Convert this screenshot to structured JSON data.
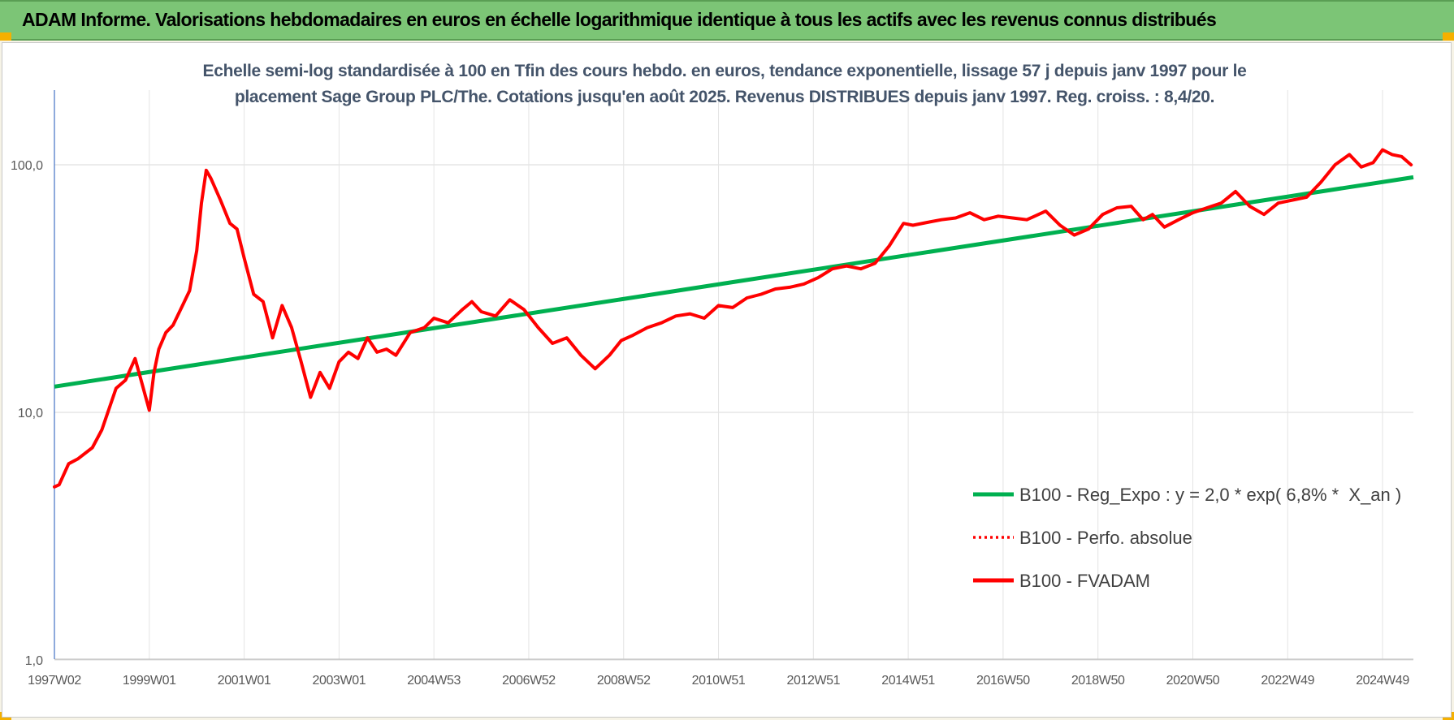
{
  "banner": {
    "title": "ADAM Informe. Valorisations hebdomadaires en euros en échelle logarithmique identique à tous les actifs avec les revenus connus distribués"
  },
  "colors": {
    "banner_bg": "#7cc576",
    "regression": "#00b050",
    "fvadam": "#ff0000",
    "perfo": "#ff0000"
  },
  "chart_data": {
    "type": "line",
    "title_lines": [
      "Echelle semi-log standardisée à 100 en Tfin des cours hebdo. en euros, tendance exponentielle, lissage 57 j depuis janv 1997 pour le",
      "placement Sage Group PLC/The. Cotations jusqu'en août 2025.  Revenus DISTRIBUES depuis janv 1997.  Reg. croiss. : 8,4/20."
    ],
    "y_scale": "log",
    "ylim": [
      1,
      200
    ],
    "y_ticks": [
      {
        "value": 1,
        "label": "1,0"
      },
      {
        "value": 10,
        "label": "10,0"
      },
      {
        "value": 100,
        "label": "100,0"
      }
    ],
    "xlim": [
      1997.0,
      2025.65
    ],
    "x_ticks": [
      {
        "value": 1997.0,
        "label": "1997W02"
      },
      {
        "value": 1999.0,
        "label": "1999W01"
      },
      {
        "value": 2001.0,
        "label": "2001W01"
      },
      {
        "value": 2003.0,
        "label": "2003W01"
      },
      {
        "value": 2005.0,
        "label": "2004W53"
      },
      {
        "value": 2007.0,
        "label": "2006W52"
      },
      {
        "value": 2009.0,
        "label": "2008W52"
      },
      {
        "value": 2011.0,
        "label": "2010W51"
      },
      {
        "value": 2013.0,
        "label": "2012W51"
      },
      {
        "value": 2015.0,
        "label": "2014W51"
      },
      {
        "value": 2017.0,
        "label": "2016W50"
      },
      {
        "value": 2019.0,
        "label": "2018W50"
      },
      {
        "value": 2021.0,
        "label": "2020W50"
      },
      {
        "value": 2023.0,
        "label": "2022W49"
      },
      {
        "value": 2025.0,
        "label": "2024W49"
      }
    ],
    "grid": true,
    "legend_position": "bottom-right",
    "series": [
      {
        "name": "B100 - Reg_Expo : y = 2,0 * exp( 6,8% *  X_an )",
        "style": "solid-thick",
        "color": "#00b050",
        "x": [
          1997.0,
          2025.65
        ],
        "y": [
          12.7,
          89.0
        ]
      },
      {
        "name": "B100 - Perfo. absolue",
        "style": "dotted",
        "color": "#ff0000",
        "x": [],
        "y": []
      },
      {
        "name": "B100 - FVADAM",
        "style": "solid-thick",
        "color": "#ff0000",
        "x": [
          1997.0,
          1997.1,
          1997.3,
          1997.5,
          1997.8,
          1998.0,
          1998.3,
          1998.5,
          1998.7,
          1998.85,
          1999.0,
          1999.1,
          1999.2,
          1999.35,
          1999.5,
          1999.7,
          1999.85,
          2000.0,
          2000.1,
          2000.2,
          2000.3,
          2000.5,
          2000.7,
          2000.85,
          2001.0,
          2001.2,
          2001.4,
          2001.6,
          2001.8,
          2002.0,
          2002.2,
          2002.4,
          2002.6,
          2002.8,
          2003.0,
          2003.2,
          2003.4,
          2003.6,
          2003.8,
          2004.0,
          2004.2,
          2004.5,
          2004.8,
          2005.0,
          2005.3,
          2005.6,
          2005.8,
          2006.0,
          2006.3,
          2006.6,
          2006.9,
          2007.2,
          2007.5,
          2007.8,
          2008.1,
          2008.4,
          2008.7,
          2008.95,
          2009.2,
          2009.5,
          2009.8,
          2010.1,
          2010.4,
          2010.7,
          2011.0,
          2011.3,
          2011.6,
          2011.9,
          2012.2,
          2012.5,
          2012.8,
          2013.1,
          2013.4,
          2013.7,
          2014.0,
          2014.3,
          2014.6,
          2014.9,
          2015.1,
          2015.4,
          2015.7,
          2016.0,
          2016.3,
          2016.6,
          2016.9,
          2017.2,
          2017.5,
          2017.9,
          2018.2,
          2018.5,
          2018.8,
          2019.1,
          2019.4,
          2019.7,
          2019.95,
          2020.15,
          2020.4,
          2020.7,
          2021.0,
          2021.3,
          2021.6,
          2021.9,
          2022.2,
          2022.5,
          2022.8,
          2023.1,
          2023.4,
          2023.7,
          2024.0,
          2024.3,
          2024.55,
          2024.8,
          2025.0,
          2025.2,
          2025.4,
          2025.6
        ],
        "y": [
          5.0,
          5.1,
          6.2,
          6.5,
          7.2,
          8.5,
          12.5,
          13.5,
          16.5,
          13.0,
          10.2,
          14.5,
          18.0,
          21.0,
          22.5,
          27.0,
          31.0,
          45.0,
          70.0,
          95.0,
          88.0,
          72.0,
          58.0,
          55.0,
          42.0,
          30.0,
          28.0,
          20.0,
          27.0,
          22.0,
          16.0,
          11.5,
          14.5,
          12.5,
          16.0,
          17.5,
          16.5,
          20.0,
          17.5,
          18.0,
          17.0,
          21.0,
          22.0,
          24.0,
          23.0,
          26.0,
          28.0,
          25.5,
          24.5,
          28.5,
          26.0,
          22.0,
          19.0,
          20.0,
          17.0,
          15.0,
          17.0,
          19.5,
          20.5,
          22.0,
          23.0,
          24.5,
          25.0,
          24.0,
          27.0,
          26.5,
          29.0,
          30.0,
          31.5,
          32.0,
          33.0,
          35.0,
          38.0,
          39.0,
          38.0,
          40.0,
          47.0,
          58.0,
          57.0,
          58.5,
          60.0,
          61.0,
          64.0,
          60.0,
          62.0,
          61.0,
          60.0,
          65.0,
          57.0,
          52.0,
          55.0,
          63.0,
          67.0,
          68.0,
          60.0,
          63.0,
          56.0,
          60.0,
          64.0,
          67.0,
          70.0,
          78.0,
          68.0,
          63.0,
          70.0,
          72.0,
          74.0,
          85.0,
          100.0,
          110.0,
          98.0,
          102.0,
          115.0,
          110.0,
          108.0,
          100.0
        ]
      }
    ]
  }
}
